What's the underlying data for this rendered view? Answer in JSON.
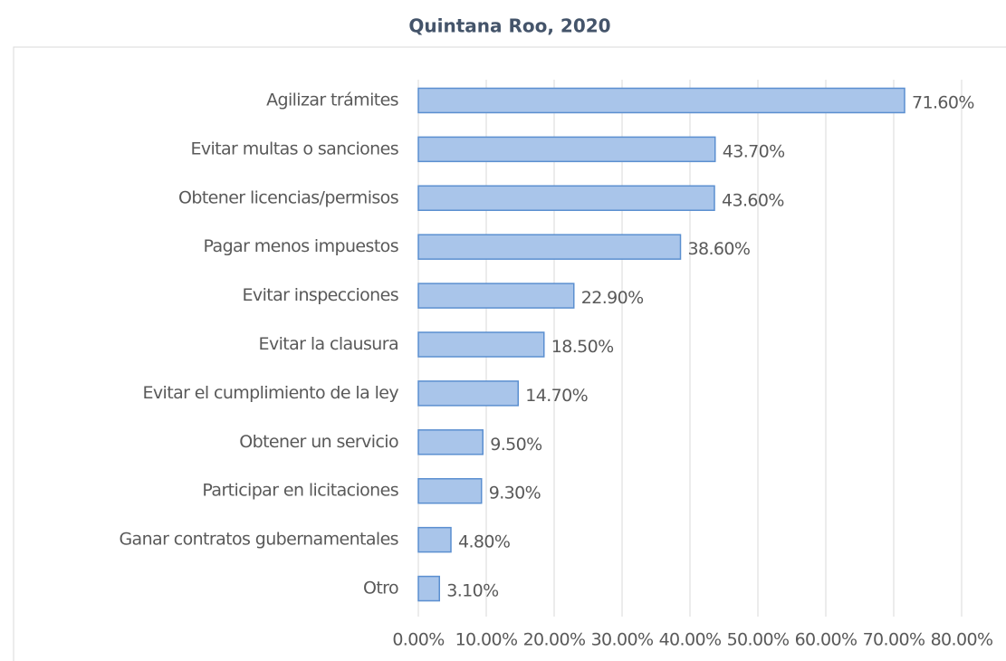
{
  "chart_data": {
    "type": "bar",
    "orientation": "horizontal",
    "title": "Quintana Roo, 2020",
    "categories": [
      "Agilizar trámites",
      "Evitar multas o sanciones",
      "Obtener licencias/permisos",
      "Pagar menos impuestos",
      "Evitar inspecciones",
      "Evitar la clausura",
      "Evitar el cumplimiento de la ley",
      "Obtener un servicio",
      "Participar en licitaciones",
      "Ganar contratos gubernamentales",
      "Otro"
    ],
    "values": [
      71.6,
      43.7,
      43.6,
      38.6,
      22.9,
      18.5,
      14.7,
      9.5,
      9.3,
      4.8,
      3.1
    ],
    "value_labels": [
      "71.60%",
      "43.70%",
      "43.60%",
      "38.60%",
      "22.90%",
      "18.50%",
      "14.70%",
      "9.50%",
      "9.30%",
      "4.80%",
      "3.10%"
    ],
    "color": "#a9c5ea",
    "border_color": "#5b8fd0",
    "xlim": [
      0,
      80
    ],
    "xticks": [
      {
        "value": 0,
        "label": "0.00%"
      },
      {
        "value": 10,
        "label": "10.00%"
      },
      {
        "value": 20,
        "label": "20.00%"
      },
      {
        "value": 30,
        "label": "30.00%"
      },
      {
        "value": 40,
        "label": "40.00%"
      },
      {
        "value": 50,
        "label": "50.00%"
      },
      {
        "value": 60,
        "label": "60.00%"
      },
      {
        "value": 70,
        "label": "70.00%"
      },
      {
        "value": 80,
        "label": "80.00%"
      }
    ],
    "grid": true
  }
}
